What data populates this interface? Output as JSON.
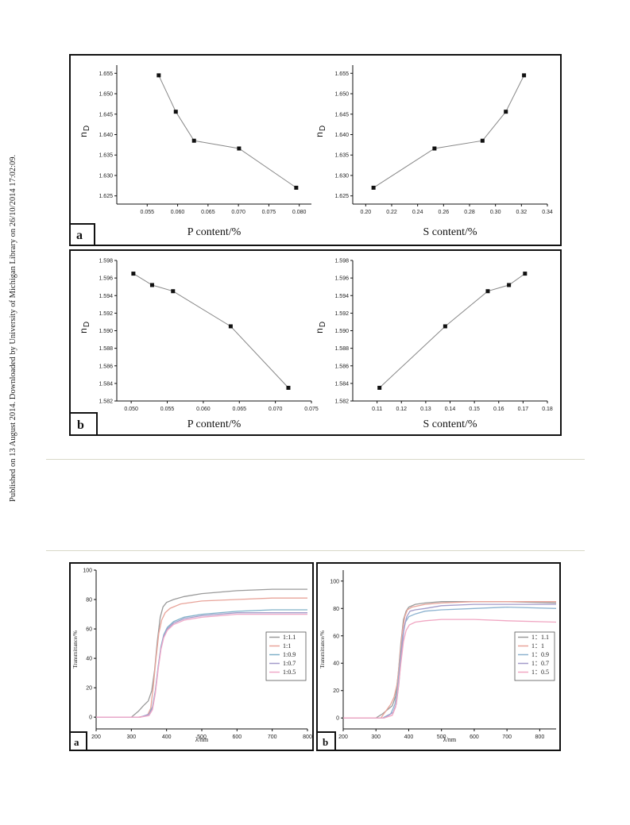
{
  "sidebar_note": "Published on 13 August 2014. Downloaded by University of Michigan Library on 26/10/2014 17:02:09.",
  "chart_data": [
    {
      "type": "line",
      "panel": "a",
      "ylabel_main": "n",
      "ylabel_sub": "D",
      "xlabel": "P content/%",
      "xlim": [
        0.05,
        0.082
      ],
      "ylim": [
        1.623,
        1.657
      ],
      "xticks": [
        0.055,
        0.06,
        0.065,
        0.07,
        0.075,
        0.08
      ],
      "xtick_labels": [
        "0.055",
        "0.060",
        "0.065",
        "0.070",
        "0.075",
        "0.080"
      ],
      "yticks": [
        1.625,
        1.63,
        1.635,
        1.64,
        1.645,
        1.65,
        1.655
      ],
      "ytick_labels": [
        "1.625",
        "1.630",
        "1.635",
        "1.640",
        "1.645",
        "1.650",
        "1.655"
      ],
      "x": [
        0.0569,
        0.0597,
        0.0627,
        0.0701,
        0.0795
      ],
      "y": [
        1.6545,
        1.6456,
        1.6385,
        1.6366,
        1.627
      ],
      "color": "#888888"
    },
    {
      "type": "line",
      "panel": "a",
      "ylabel_main": "n",
      "ylabel_sub": "D",
      "xlabel": "S content/%",
      "xlim": [
        0.19,
        0.34
      ],
      "ylim": [
        1.623,
        1.657
      ],
      "xticks": [
        0.2,
        0.22,
        0.24,
        0.26,
        0.28,
        0.3,
        0.32,
        0.34
      ],
      "xtick_labels": [
        "0.20",
        "0.22",
        "0.24",
        "0.26",
        "0.28",
        "0.30",
        "0.32",
        "0.34"
      ],
      "yticks": [
        1.625,
        1.63,
        1.635,
        1.64,
        1.645,
        1.65,
        1.655
      ],
      "ytick_labels": [
        "1.625",
        "1.630",
        "1.635",
        "1.640",
        "1.645",
        "1.650",
        "1.655"
      ],
      "x": [
        0.206,
        0.253,
        0.29,
        0.308,
        0.322
      ],
      "y": [
        1.627,
        1.6366,
        1.6385,
        1.6456,
        1.6545
      ],
      "color": "#888888"
    },
    {
      "type": "line",
      "panel": "b",
      "ylabel_main": "n",
      "ylabel_sub": "D",
      "xlabel": "P content/%",
      "xlim": [
        0.048,
        0.075
      ],
      "ylim": [
        1.582,
        1.598
      ],
      "xticks": [
        0.05,
        0.055,
        0.06,
        0.065,
        0.07,
        0.075
      ],
      "xtick_labels": [
        "0.050",
        "0.055",
        "0.060",
        "0.065",
        "0.070",
        "0.075"
      ],
      "yticks": [
        1.582,
        1.584,
        1.586,
        1.588,
        1.59,
        1.592,
        1.594,
        1.596,
        1.598
      ],
      "ytick_labels": [
        "1.582",
        "1.584",
        "1.586",
        "1.588",
        "1.590",
        "1.592",
        "1.594",
        "1.596",
        "1.598"
      ],
      "x": [
        0.0503,
        0.0529,
        0.0558,
        0.0638,
        0.0718
      ],
      "y": [
        1.5965,
        1.5952,
        1.5945,
        1.5905,
        1.5835
      ],
      "color": "#888888"
    },
    {
      "type": "line",
      "panel": "b",
      "ylabel_main": "n",
      "ylabel_sub": "D",
      "xlabel": "S content/%",
      "xlim": [
        0.1,
        0.18
      ],
      "ylim": [
        1.582,
        1.598
      ],
      "xticks": [
        0.11,
        0.12,
        0.13,
        0.14,
        0.15,
        0.16,
        0.17,
        0.18
      ],
      "xtick_labels": [
        "0.11",
        "0.12",
        "0.13",
        "0.14",
        "0.15",
        "0.16",
        "0.17",
        "0.18"
      ],
      "yticks": [
        1.582,
        1.584,
        1.586,
        1.588,
        1.59,
        1.592,
        1.594,
        1.596,
        1.598
      ],
      "ytick_labels": [
        "1.582",
        "1.584",
        "1.586",
        "1.588",
        "1.590",
        "1.592",
        "1.594",
        "1.596",
        "1.598"
      ],
      "x": [
        0.111,
        0.138,
        0.1555,
        0.1642,
        0.1708
      ],
      "y": [
        1.5835,
        1.5905,
        1.5945,
        1.5952,
        1.5965
      ],
      "color": "#888888"
    },
    {
      "type": "line",
      "panel": "a",
      "ylabel": "Transmittance/%",
      "xlabel": "λ/nm",
      "xlim": [
        200,
        800
      ],
      "ylim": [
        -8,
        100
      ],
      "xticks": [
        200,
        300,
        400,
        500,
        600,
        700,
        800
      ],
      "yticks": [
        0,
        20,
        40,
        60,
        80,
        100
      ],
      "legend_position": "right",
      "series": [
        {
          "name": "1:1.1",
          "color": "#9a9a9a",
          "x": [
            200,
            300,
            320,
            335,
            348,
            358,
            366,
            374,
            382,
            390,
            400,
            420,
            450,
            500,
            600,
            700,
            800
          ],
          "y": [
            0,
            0,
            4,
            8,
            11,
            18,
            32,
            52,
            68,
            75,
            78,
            80,
            82,
            84,
            86,
            87,
            87
          ]
        },
        {
          "name": "1:1",
          "color": "#e8a49a",
          "x": [
            200,
            320,
            345,
            355,
            362,
            370,
            378,
            386,
            396,
            410,
            440,
            500,
            600,
            700,
            800
          ],
          "y": [
            0,
            0,
            1,
            6,
            20,
            40,
            57,
            66,
            71,
            74,
            77,
            79,
            80,
            81,
            81
          ]
        },
        {
          "name": "1:0.9",
          "color": "#7fb0c8",
          "x": [
            200,
            325,
            350,
            360,
            368,
            376,
            384,
            392,
            402,
            420,
            450,
            500,
            600,
            700,
            800
          ],
          "y": [
            0,
            0,
            2,
            7,
            18,
            34,
            48,
            56,
            61,
            65,
            68,
            70,
            72,
            73,
            73
          ]
        },
        {
          "name": "1:0.7",
          "color": "#a39bc9",
          "x": [
            200,
            325,
            350,
            360,
            368,
            376,
            384,
            392,
            402,
            420,
            450,
            500,
            600,
            700,
            800
          ],
          "y": [
            0,
            0,
            2,
            6,
            17,
            33,
            47,
            55,
            60,
            64,
            67,
            69,
            71,
            71,
            71
          ]
        },
        {
          "name": "1:0.5",
          "color": "#efa8c8",
          "x": [
            200,
            325,
            350,
            360,
            368,
            376,
            384,
            392,
            402,
            420,
            450,
            500,
            600,
            700,
            800
          ],
          "y": [
            0,
            0,
            1,
            5,
            16,
            32,
            46,
            54,
            59,
            63,
            66,
            68,
            70,
            70,
            70
          ]
        }
      ]
    },
    {
      "type": "line",
      "panel": "b",
      "ylabel": "Transmittance/%",
      "xlabel": "λ/nm",
      "xlim": [
        200,
        850
      ],
      "ylim": [
        -8,
        108
      ],
      "xticks": [
        200,
        300,
        400,
        500,
        600,
        700,
        800
      ],
      "yticks": [
        0,
        20,
        40,
        60,
        80,
        100
      ],
      "legend_position": "right",
      "series": [
        {
          "name": "1：1.1",
          "color": "#9a9a9a",
          "x": [
            200,
            300,
            320,
            335,
            350,
            360,
            368,
            376,
            384,
            392,
            400,
            420,
            450,
            500,
            600,
            700,
            850
          ],
          "y": [
            0,
            0,
            3,
            6,
            9,
            16,
            32,
            55,
            72,
            78,
            81,
            83,
            84,
            85,
            85,
            85,
            84
          ]
        },
        {
          "name": "1：1",
          "color": "#e8a49a",
          "x": [
            200,
            315,
            330,
            345,
            355,
            365,
            372,
            380,
            388,
            396,
            410,
            450,
            500,
            600,
            700,
            850
          ],
          "y": [
            0,
            0,
            5,
            10,
            15,
            25,
            42,
            62,
            74,
            79,
            81,
            83,
            84,
            85,
            85,
            85
          ]
        },
        {
          "name": "1：0.9",
          "color": "#8cb2cf",
          "x": [
            200,
            320,
            345,
            358,
            366,
            374,
            382,
            390,
            400,
            420,
            450,
            500,
            600,
            700,
            850
          ],
          "y": [
            0,
            0,
            3,
            10,
            22,
            42,
            60,
            70,
            74,
            76,
            78,
            79,
            80,
            81,
            80
          ]
        },
        {
          "name": "1：0.7",
          "color": "#a39bc9",
          "x": [
            200,
            325,
            352,
            362,
            370,
            378,
            386,
            394,
            404,
            420,
            450,
            500,
            600,
            700,
            850
          ],
          "y": [
            0,
            0,
            4,
            10,
            25,
            48,
            66,
            74,
            78,
            79,
            80,
            82,
            83,
            83,
            83
          ]
        },
        {
          "name": "1：0.5",
          "color": "#f0a6c2",
          "x": [
            200,
            325,
            350,
            360,
            368,
            376,
            384,
            392,
            402,
            420,
            450,
            500,
            600,
            700,
            850
          ],
          "y": [
            0,
            0,
            2,
            8,
            22,
            40,
            56,
            64,
            68,
            70,
            71,
            72,
            72,
            71,
            70
          ]
        }
      ]
    }
  ],
  "frames": [
    {
      "label": "a"
    },
    {
      "label": "b"
    },
    {
      "label": "a"
    },
    {
      "label": "b"
    }
  ]
}
